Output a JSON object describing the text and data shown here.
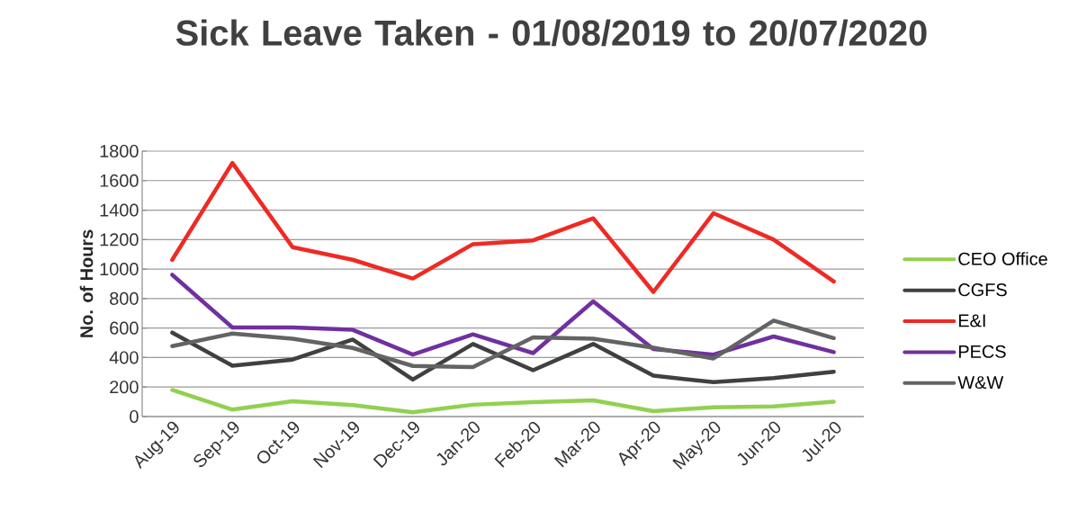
{
  "chart_data": {
    "type": "line",
    "title": "Sick Leave Taken - 01/08/2019 to 20/07/2020",
    "ylabel": "No. of Hours",
    "categories": [
      "Aug-19",
      "Sep-19",
      "Oct-19",
      "Nov-19",
      "Dec-19",
      "Jan-20",
      "Feb-20",
      "Mar-20",
      "Apr-20",
      "May-20",
      "Jun-20",
      "Jul-20"
    ],
    "series": [
      {
        "name": "CEO Office",
        "color": "#92d050",
        "values": [
          180,
          47,
          104,
          78,
          29,
          80,
          98,
          110,
          37,
          63,
          69,
          100
        ]
      },
      {
        "name": "CGFS",
        "color": "#404040",
        "values": [
          569,
          345,
          386,
          522,
          251,
          492,
          314,
          492,
          277,
          233,
          261,
          304
        ]
      },
      {
        "name": "E&I",
        "color": "#ee2a24",
        "values": [
          1063,
          1720,
          1149,
          1063,
          936,
          1169,
          1195,
          1344,
          845,
          1379,
          1200,
          916
        ]
      },
      {
        "name": "PECS",
        "color": "#7030a0",
        "values": [
          961,
          604,
          604,
          588,
          420,
          557,
          430,
          781,
          457,
          420,
          543,
          437
        ]
      },
      {
        "name": "W&W",
        "color": "#636363",
        "values": [
          477,
          563,
          528,
          465,
          343,
          335,
          537,
          528,
          467,
          394,
          651,
          532
        ]
      }
    ],
    "ylim": [
      0,
      1800
    ],
    "yticks": [
      0,
      200,
      400,
      600,
      800,
      1000,
      1200,
      1400,
      1600,
      1800
    ],
    "grid": "y",
    "legend": "right",
    "marker": "none"
  }
}
